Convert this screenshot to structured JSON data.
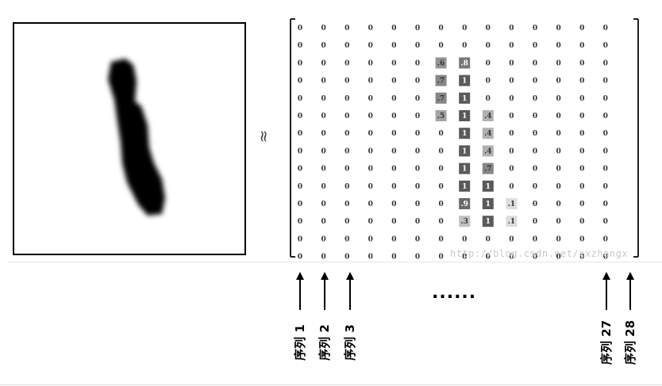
{
  "approx_symbol": "≈",
  "watermark": "http://blog.csdn.net/xxzhangx",
  "ellipsis": "......",
  "sequence_labels": [
    "序列 1",
    "序列 2",
    "序列 3",
    "序列 27",
    "序列 28"
  ],
  "matrix": {
    "cells": [
      [
        "0",
        "0",
        "0",
        "0",
        "0",
        "0",
        "0",
        "0",
        "0",
        "0",
        "0",
        "0",
        "0",
        "0"
      ],
      [
        "0",
        "0",
        "0",
        "0",
        "0",
        "0",
        "0",
        "0",
        "0",
        "0",
        "0",
        "0",
        "0",
        "0"
      ],
      [
        "0",
        "0",
        "0",
        "0",
        "0",
        "0",
        ".6",
        ".8",
        "0",
        "0",
        "0",
        "0",
        "0",
        "0"
      ],
      [
        "0",
        "0",
        "0",
        "0",
        "0",
        "0",
        ".7",
        "1",
        "0",
        "0",
        "0",
        "0",
        "0",
        "0"
      ],
      [
        "0",
        "0",
        "0",
        "0",
        "0",
        "0",
        ".7",
        "1",
        "0",
        "0",
        "0",
        "0",
        "0",
        "0"
      ],
      [
        "0",
        "0",
        "0",
        "0",
        "0",
        "0",
        ".5",
        "1",
        ".4",
        "0",
        "0",
        "0",
        "0",
        "0"
      ],
      [
        "0",
        "0",
        "0",
        "0",
        "0",
        "0",
        "0",
        "1",
        ".4",
        "0",
        "0",
        "0",
        "0",
        "0"
      ],
      [
        "0",
        "0",
        "0",
        "0",
        "0",
        "0",
        "0",
        "1",
        ".4",
        "0",
        "0",
        "0",
        "0",
        "0"
      ],
      [
        "0",
        "0",
        "0",
        "0",
        "0",
        "0",
        "0",
        "1",
        ".7",
        "0",
        "0",
        "0",
        "0",
        "0"
      ],
      [
        "0",
        "0",
        "0",
        "0",
        "0",
        "0",
        "0",
        "1",
        "1",
        "0",
        "0",
        "0",
        "0",
        "0"
      ],
      [
        "0",
        "0",
        "0",
        "0",
        "0",
        "0",
        "0",
        ".9",
        "1",
        ".1",
        "0",
        "0",
        "0",
        "0"
      ],
      [
        "0",
        "0",
        "0",
        "0",
        "0",
        "0",
        "0",
        ".3",
        "1",
        ".1",
        "0",
        "0",
        "0",
        "0"
      ],
      [
        "0",
        "0",
        "0",
        "0",
        "0",
        "0",
        "0",
        "0",
        "0",
        "0",
        "0",
        "0",
        "0",
        "0"
      ],
      [
        "0",
        "0",
        "0",
        "0",
        "0",
        "0",
        "0",
        "0",
        "0",
        "0",
        "0",
        "0",
        "0",
        "0"
      ]
    ],
    "values": [
      [
        0,
        0,
        0,
        0,
        0,
        0,
        0,
        0,
        0,
        0,
        0,
        0,
        0,
        0
      ],
      [
        0,
        0,
        0,
        0,
        0,
        0,
        0,
        0,
        0,
        0,
        0,
        0,
        0,
        0
      ],
      [
        0,
        0,
        0,
        0,
        0,
        0,
        0.6,
        0.8,
        0,
        0,
        0,
        0,
        0,
        0
      ],
      [
        0,
        0,
        0,
        0,
        0,
        0,
        0.7,
        1,
        0,
        0,
        0,
        0,
        0,
        0
      ],
      [
        0,
        0,
        0,
        0,
        0,
        0,
        0.7,
        1,
        0,
        0,
        0,
        0,
        0,
        0
      ],
      [
        0,
        0,
        0,
        0,
        0,
        0,
        0.5,
        1,
        0.4,
        0,
        0,
        0,
        0,
        0
      ],
      [
        0,
        0,
        0,
        0,
        0,
        0,
        0,
        1,
        0.4,
        0,
        0,
        0,
        0,
        0
      ],
      [
        0,
        0,
        0,
        0,
        0,
        0,
        0,
        1,
        0.4,
        0,
        0,
        0,
        0,
        0
      ],
      [
        0,
        0,
        0,
        0,
        0,
        0,
        0,
        1,
        0.7,
        0,
        0,
        0,
        0,
        0
      ],
      [
        0,
        0,
        0,
        0,
        0,
        0,
        0,
        1,
        1,
        0,
        0,
        0,
        0,
        0
      ],
      [
        0,
        0,
        0,
        0,
        0,
        0,
        0,
        0.9,
        1,
        0.1,
        0,
        0,
        0,
        0
      ],
      [
        0,
        0,
        0,
        0,
        0,
        0,
        0,
        0.3,
        1,
        0.1,
        0,
        0,
        0,
        0
      ],
      [
        0,
        0,
        0,
        0,
        0,
        0,
        0,
        0,
        0,
        0,
        0,
        0,
        0,
        0
      ],
      [
        0,
        0,
        0,
        0,
        0,
        0,
        0,
        0,
        0,
        0,
        0,
        0,
        0,
        0
      ]
    ]
  }
}
